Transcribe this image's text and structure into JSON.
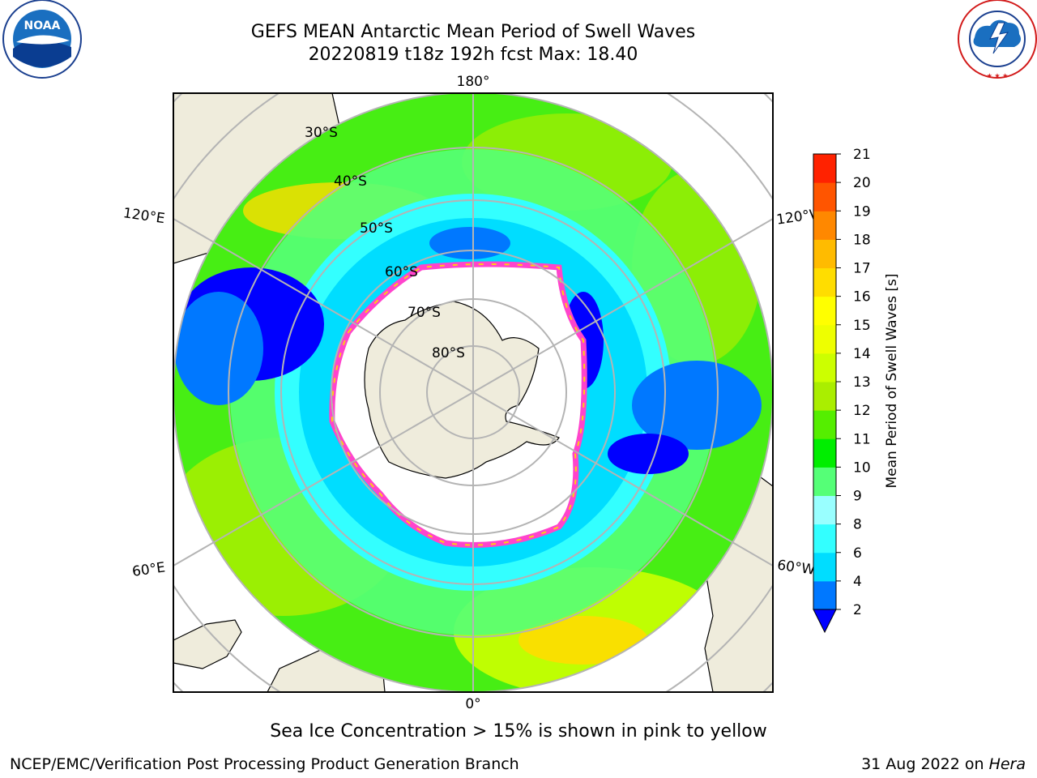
{
  "header": {
    "title_line1": "GEFS MEAN Antarctic Mean Period of Swell Waves",
    "title_line2": "20220819 t18z 192h fcst   Max: 18.40"
  },
  "logos": {
    "left": "NOAA",
    "left_ring_text": "NATIONAL OCEANIC AND ATMOSPHERIC ADMINISTRATION · U.S. DEPARTMENT OF COMMERCE",
    "right_ring_text": "NATIONAL WEATHER SERVICE"
  },
  "map": {
    "projection": "south polar stereographic",
    "longitude_labels": {
      "top": "180°",
      "bottom": "0°",
      "left_upper": "120°E",
      "left_lower": "60°E",
      "right_upper": "120°W",
      "right_lower": "60°W"
    },
    "latitude_labels": [
      "30°S",
      "40°S",
      "50°S",
      "60°S",
      "70°S",
      "80°S"
    ],
    "colors": {
      "land": "#efecdc",
      "ice_interior": "#ffffff",
      "ice_edge": "#ff44cc",
      "grid": "#b4b4b4"
    }
  },
  "colorbar": {
    "label": "Mean Period of Swell Waves [s]",
    "ticks": [
      "2",
      "4",
      "6",
      "8",
      "9",
      "10",
      "11",
      "12",
      "13",
      "14",
      "15",
      "16",
      "17",
      "18",
      "19",
      "20",
      "21"
    ],
    "colors": [
      "#0078ff",
      "#00ddff",
      "#33ffff",
      "#99ffff",
      "#55ff77",
      "#00ee00",
      "#55ee00",
      "#aaee00",
      "#ccff00",
      "#eeff00",
      "#ffff00",
      "#ffdd00",
      "#ffbb00",
      "#ff8800",
      "#ff5500",
      "#ff2200"
    ],
    "extend_low_color": "#0000ff"
  },
  "caption": "Sea Ice Concentration > 15% is shown in pink to yellow",
  "footer": {
    "left": "NCEP/EMC/Verification Post Processing Product Generation Branch",
    "right_prefix": "31 Aug 2022 on ",
    "right_host": "Hera"
  }
}
